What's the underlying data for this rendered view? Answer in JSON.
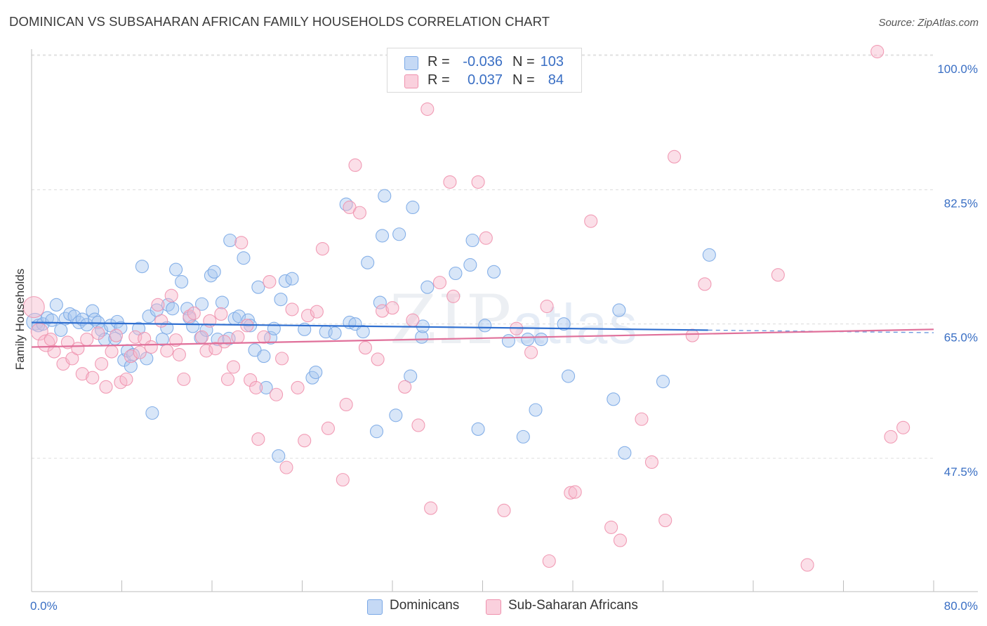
{
  "title": "DOMINICAN VS SUBSAHARAN AFRICAN FAMILY HOUSEHOLDS CORRELATION CHART",
  "source": "Source: ZipAtlas.com",
  "watermark": {
    "zip": "ZIP",
    "atlas": "atlas"
  },
  "legend_top": {
    "rows": [
      {
        "r_label": "R =",
        "r_value": "-0.036",
        "n_label": "N =",
        "n_value": "103",
        "color": "#a9c8f0"
      },
      {
        "r_label": "R =",
        "r_value": "0.037",
        "n_label": "N =",
        "n_value": "84",
        "color": "#f6b8cb"
      }
    ]
  },
  "legend_bottom": [
    {
      "label": "Dominicans",
      "color": "#a9c8f0"
    },
    {
      "label": "Sub-Saharan Africans",
      "color": "#f6b8cb"
    }
  ],
  "chart_data": {
    "type": "scatter",
    "title": "DOMINICAN VS SUBSAHARAN AFRICAN FAMILY HOUSEHOLDS CORRELATION CHART",
    "ylabel": "Family Households",
    "xlabel": "",
    "xlim": [
      0,
      80
    ],
    "ylim": [
      30,
      101.5
    ],
    "x_tick_labels": [
      "0.0%",
      "80.0%"
    ],
    "y_ticks": [
      {
        "value": 100,
        "label": "100.0%"
      },
      {
        "value": 82.5,
        "label": "82.5%"
      },
      {
        "value": 65,
        "label": "65.0%"
      },
      {
        "value": 47.5,
        "label": "47.5%"
      }
    ],
    "grid": true,
    "legend_position": "top-center",
    "series": [
      {
        "name": "Dominicans",
        "color": "#7aa8e6",
        "fill": "#a9c8f0",
        "line_color": "#2f6fd0",
        "trend": {
          "x": [
            0,
            60
          ],
          "y": [
            65.2,
            64.2
          ],
          "dashed_to": 80
        },
        "points": [
          [
            0.3,
            65.3,
            2
          ],
          [
            0.6,
            64.8,
            1
          ],
          [
            1.0,
            65.0,
            1
          ],
          [
            1.4,
            65.8,
            1
          ],
          [
            1.8,
            65.5,
            1
          ],
          [
            2.2,
            67.5,
            1
          ],
          [
            2.6,
            64.2,
            1
          ],
          [
            3.0,
            65.7,
            1
          ],
          [
            3.4,
            66.3,
            1
          ],
          [
            3.8,
            66.0,
            1
          ],
          [
            4.2,
            65.2,
            1
          ],
          [
            4.5,
            65.6,
            1
          ],
          [
            4.9,
            64.9,
            1
          ],
          [
            5.4,
            66.7,
            1
          ],
          [
            5.6,
            65.6,
            1
          ],
          [
            5.9,
            65.2,
            1
          ],
          [
            6.2,
            64.2,
            1
          ],
          [
            6.5,
            63.0,
            1
          ],
          [
            7.0,
            64.8,
            1
          ],
          [
            7.4,
            63.1,
            1
          ],
          [
            7.6,
            65.3,
            1
          ],
          [
            7.9,
            64.5,
            1
          ],
          [
            8.2,
            60.3,
            1
          ],
          [
            8.5,
            61.5,
            1
          ],
          [
            8.8,
            59.5,
            1
          ],
          [
            9.0,
            61.0,
            1
          ],
          [
            9.5,
            64.4,
            1
          ],
          [
            9.8,
            72.5,
            1
          ],
          [
            10.2,
            60.5,
            1
          ],
          [
            10.4,
            66.0,
            1
          ],
          [
            10.7,
            53.4,
            1
          ],
          [
            11.1,
            66.8,
            1
          ],
          [
            11.6,
            63.0,
            1
          ],
          [
            12.0,
            64.5,
            1
          ],
          [
            12.1,
            67.5,
            1
          ],
          [
            12.5,
            67.0,
            1
          ],
          [
            12.8,
            72.1,
            1
          ],
          [
            13.3,
            70.5,
            1
          ],
          [
            13.8,
            67.0,
            1
          ],
          [
            14.0,
            65.8,
            1
          ],
          [
            14.3,
            64.7,
            1
          ],
          [
            15.0,
            63.2,
            1
          ],
          [
            15.1,
            67.6,
            1
          ],
          [
            15.5,
            64.2,
            1
          ],
          [
            15.9,
            71.3,
            1
          ],
          [
            16.2,
            71.8,
            1
          ],
          [
            16.5,
            63.0,
            1
          ],
          [
            16.9,
            67.8,
            1
          ],
          [
            17.5,
            63.1,
            1
          ],
          [
            17.6,
            75.9,
            1
          ],
          [
            18.0,
            65.7,
            1
          ],
          [
            18.4,
            66.0,
            1
          ],
          [
            18.8,
            73.6,
            1
          ],
          [
            19.2,
            65.5,
            1
          ],
          [
            19.4,
            64.8,
            1
          ],
          [
            19.8,
            61.6,
            1
          ],
          [
            20.1,
            69.8,
            1
          ],
          [
            20.6,
            60.8,
            1
          ],
          [
            20.8,
            56.7,
            1
          ],
          [
            21.2,
            63.2,
            1
          ],
          [
            21.5,
            64.4,
            1
          ],
          [
            21.9,
            47.8,
            1
          ],
          [
            22.1,
            68.2,
            1
          ],
          [
            22.5,
            70.6,
            1
          ],
          [
            23.1,
            70.9,
            1
          ],
          [
            24.2,
            64.3,
            1
          ],
          [
            24.9,
            58.0,
            1
          ],
          [
            25.2,
            58.7,
            1
          ],
          [
            26.1,
            64.0,
            1
          ],
          [
            26.9,
            63.8,
            1
          ],
          [
            27.9,
            80.6,
            1
          ],
          [
            28.2,
            65.2,
            1
          ],
          [
            28.7,
            65.0,
            1
          ],
          [
            29.4,
            64.0,
            1
          ],
          [
            29.8,
            73.0,
            1
          ],
          [
            30.6,
            51.0,
            1
          ],
          [
            30.9,
            67.8,
            1
          ],
          [
            31.1,
            76.5,
            1
          ],
          [
            31.3,
            81.7,
            1
          ],
          [
            32.3,
            53.1,
            1
          ],
          [
            32.6,
            76.7,
            1
          ],
          [
            33.6,
            58.2,
            1
          ],
          [
            33.8,
            80.2,
            1
          ],
          [
            34.6,
            63.3,
            1
          ],
          [
            34.7,
            64.7,
            1
          ],
          [
            35.1,
            69.8,
            1
          ],
          [
            37.6,
            71.6,
            1
          ],
          [
            38.9,
            72.7,
            1
          ],
          [
            39.1,
            75.9,
            1
          ],
          [
            39.6,
            51.3,
            1
          ],
          [
            40.2,
            64.8,
            1
          ],
          [
            41.0,
            71.8,
            1
          ],
          [
            42.3,
            62.8,
            1
          ],
          [
            43.6,
            50.3,
            1
          ],
          [
            44.0,
            63.0,
            1
          ],
          [
            44.7,
            53.8,
            1
          ],
          [
            45.2,
            63.0,
            1
          ],
          [
            47.2,
            65.0,
            1
          ],
          [
            47.6,
            58.2,
            1
          ],
          [
            51.6,
            55.2,
            1
          ],
          [
            52.1,
            66.8,
            1
          ],
          [
            52.6,
            48.2,
            1
          ],
          [
            56.0,
            57.5,
            1
          ],
          [
            60.1,
            74.0,
            1
          ]
        ]
      },
      {
        "name": "Sub-Saharan Africans",
        "color": "#ef92ae",
        "fill": "#f6b8cb",
        "line_color": "#e0709a",
        "trend": {
          "x": [
            0,
            80
          ],
          "y": [
            62.0,
            64.3
          ]
        },
        "points": [
          [
            0.2,
            67.2,
            3
          ],
          [
            0.7,
            64.0,
            2
          ],
          [
            1.3,
            62.5,
            2
          ],
          [
            1.7,
            63.0,
            1
          ],
          [
            2.0,
            61.4,
            1
          ],
          [
            2.8,
            59.8,
            1
          ],
          [
            3.2,
            62.6,
            1
          ],
          [
            3.6,
            60.5,
            1
          ],
          [
            4.1,
            61.8,
            1
          ],
          [
            4.5,
            58.5,
            1
          ],
          [
            4.9,
            63.0,
            1
          ],
          [
            5.4,
            58.0,
            1
          ],
          [
            5.9,
            63.8,
            1
          ],
          [
            6.2,
            59.8,
            1
          ],
          [
            6.6,
            56.8,
            1
          ],
          [
            7.1,
            61.4,
            1
          ],
          [
            7.5,
            63.5,
            1
          ],
          [
            7.9,
            57.4,
            1
          ],
          [
            8.4,
            57.8,
            1
          ],
          [
            8.8,
            60.8,
            1
          ],
          [
            9.2,
            63.3,
            1
          ],
          [
            9.6,
            61.3,
            1
          ],
          [
            10.0,
            63.1,
            1
          ],
          [
            10.6,
            62.0,
            1
          ],
          [
            11.2,
            67.5,
            1
          ],
          [
            11.5,
            65.4,
            1
          ],
          [
            12.0,
            61.5,
            1
          ],
          [
            12.4,
            68.7,
            1
          ],
          [
            12.8,
            62.9,
            1
          ],
          [
            13.1,
            61.0,
            1
          ],
          [
            13.5,
            57.8,
            1
          ],
          [
            14.0,
            66.0,
            1
          ],
          [
            14.4,
            66.4,
            1
          ],
          [
            15.1,
            63.3,
            1
          ],
          [
            15.5,
            61.5,
            1
          ],
          [
            15.8,
            65.4,
            1
          ],
          [
            16.3,
            61.8,
            1
          ],
          [
            16.8,
            66.3,
            1
          ],
          [
            17.1,
            62.7,
            1
          ],
          [
            17.4,
            57.8,
            1
          ],
          [
            17.9,
            59.4,
            1
          ],
          [
            18.3,
            63.3,
            1
          ],
          [
            18.6,
            75.6,
            1
          ],
          [
            19.1,
            64.8,
            1
          ],
          [
            19.4,
            57.7,
            1
          ],
          [
            19.9,
            56.7,
            1
          ],
          [
            20.1,
            50.0,
            1
          ],
          [
            20.6,
            63.3,
            1
          ],
          [
            21.1,
            70.5,
            1
          ],
          [
            21.7,
            55.8,
            1
          ],
          [
            22.2,
            60.5,
            1
          ],
          [
            22.6,
            46.3,
            1
          ],
          [
            23.1,
            66.9,
            1
          ],
          [
            23.6,
            56.7,
            1
          ],
          [
            24.2,
            49.8,
            1
          ],
          [
            24.5,
            66.1,
            1
          ],
          [
            25.3,
            66.6,
            1
          ],
          [
            25.8,
            74.8,
            1
          ],
          [
            26.3,
            51.4,
            1
          ],
          [
            27.6,
            44.7,
            1
          ],
          [
            27.9,
            54.5,
            1
          ],
          [
            28.2,
            80.2,
            1
          ],
          [
            28.7,
            85.7,
            1
          ],
          [
            29.1,
            79.5,
            1
          ],
          [
            29.6,
            61.9,
            1
          ],
          [
            30.7,
            60.4,
            1
          ],
          [
            31.1,
            66.7,
            1
          ],
          [
            32.0,
            67.1,
            1
          ],
          [
            33.1,
            56.8,
            1
          ],
          [
            33.8,
            65.5,
            1
          ],
          [
            34.3,
            51.8,
            1
          ],
          [
            35.1,
            93.0,
            1
          ],
          [
            35.4,
            41.0,
            1
          ],
          [
            36.2,
            70.4,
            1
          ],
          [
            37.1,
            83.5,
            1
          ],
          [
            37.4,
            68.6,
            1
          ],
          [
            39.6,
            83.5,
            1
          ],
          [
            40.3,
            76.2,
            1
          ],
          [
            41.9,
            40.7,
            1
          ],
          [
            43.0,
            64.4,
            1
          ],
          [
            44.3,
            61.3,
            1
          ],
          [
            45.7,
            67.3,
            1
          ],
          [
            45.9,
            34.1,
            1
          ],
          [
            47.8,
            43.0,
            1
          ],
          [
            48.2,
            43.1,
            1
          ],
          [
            49.6,
            78.4,
            1
          ],
          [
            51.4,
            38.5,
            1
          ],
          [
            52.2,
            36.8,
            1
          ],
          [
            56.2,
            39.4,
            1
          ],
          [
            54.1,
            52.6,
            1
          ],
          [
            57.0,
            86.8,
            1
          ],
          [
            58.6,
            63.5,
            1
          ],
          [
            59.7,
            70.2,
            1
          ],
          [
            66.2,
            71.4,
            1
          ],
          [
            68.8,
            33.6,
            1
          ],
          [
            75.0,
            100.5,
            1
          ],
          [
            76.2,
            50.3,
            1
          ],
          [
            77.3,
            51.5,
            1
          ],
          [
            55.0,
            47.0,
            1
          ]
        ]
      }
    ]
  }
}
